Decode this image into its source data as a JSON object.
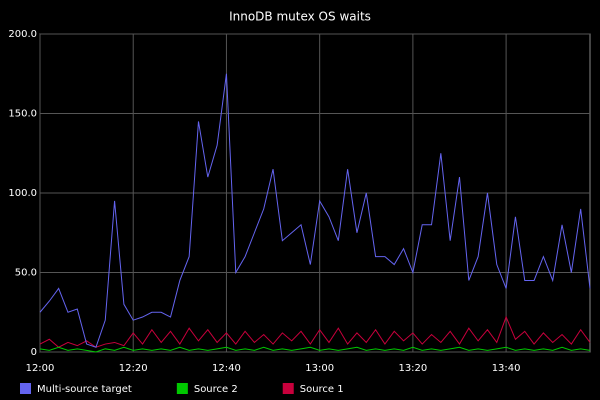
{
  "chart_data": {
    "type": "line",
    "title": "InnoDB mutex OS waits",
    "x": [
      "12:00",
      "12:02",
      "12:04",
      "12:06",
      "12:08",
      "12:10",
      "12:12",
      "12:14",
      "12:16",
      "12:18",
      "12:20",
      "12:22",
      "12:24",
      "12:26",
      "12:28",
      "12:30",
      "12:32",
      "12:34",
      "12:36",
      "12:38",
      "12:40",
      "12:42",
      "12:44",
      "12:46",
      "12:48",
      "12:50",
      "12:52",
      "12:54",
      "12:56",
      "12:58",
      "13:00",
      "13:02",
      "13:04",
      "13:06",
      "13:08",
      "13:10",
      "13:12",
      "13:14",
      "13:16",
      "13:18",
      "13:20",
      "13:22",
      "13:24",
      "13:26",
      "13:28",
      "13:30",
      "13:32",
      "13:34",
      "13:36",
      "13:38",
      "13:40",
      "13:42",
      "13:44",
      "13:46",
      "13:48",
      "13:50",
      "13:52",
      "13:54",
      "13:56",
      "13:58"
    ],
    "series": [
      {
        "name": "Multi-source target",
        "color": "#6464f0",
        "values": [
          25,
          32,
          40,
          25,
          27,
          5,
          3,
          20,
          95,
          30,
          20,
          22,
          25,
          25,
          22,
          45,
          60,
          145,
          110,
          130,
          175,
          50,
          60,
          75,
          90,
          115,
          70,
          75,
          80,
          55,
          95,
          85,
          70,
          115,
          75,
          100,
          60,
          60,
          55,
          65,
          50,
          80,
          80,
          125,
          70,
          110,
          45,
          60,
          100,
          55,
          40,
          85,
          45,
          45,
          60,
          45,
          80,
          50,
          90,
          40
        ]
      },
      {
        "name": "Source 2",
        "color": "#00c800",
        "values": [
          2,
          1,
          3,
          1,
          2,
          1,
          0,
          2,
          1,
          3,
          1,
          2,
          1,
          2,
          1,
          3,
          1,
          2,
          1,
          2,
          3,
          1,
          2,
          1,
          3,
          1,
          2,
          1,
          2,
          3,
          1,
          2,
          1,
          2,
          3,
          1,
          2,
          1,
          2,
          1,
          3,
          1,
          2,
          1,
          2,
          3,
          1,
          2,
          1,
          2,
          3,
          1,
          2,
          1,
          2,
          1,
          3,
          1,
          2,
          1
        ]
      },
      {
        "name": "Source 1",
        "color": "#c8003c",
        "values": [
          5,
          8,
          3,
          6,
          4,
          7,
          3,
          5,
          6,
          4,
          12,
          5,
          14,
          6,
          13,
          5,
          15,
          7,
          14,
          6,
          12,
          5,
          13,
          6,
          11,
          5,
          12,
          7,
          13,
          5,
          14,
          6,
          15,
          5,
          12,
          6,
          14,
          5,
          13,
          7,
          12,
          5,
          11,
          6,
          13,
          5,
          15,
          7,
          14,
          6,
          22,
          8,
          13,
          5,
          12,
          6,
          11,
          5,
          14,
          6
        ]
      }
    ],
    "xticks": [
      "12:00",
      "12:20",
      "12:40",
      "13:00",
      "13:20",
      "13:40"
    ],
    "ylim": [
      0,
      200
    ],
    "yticks": [
      0,
      {
        "value": 50,
        "label": "50.0"
      },
      {
        "value": 100,
        "label": "100.0"
      },
      {
        "value": 150,
        "label": "150.0"
      },
      {
        "value": 200,
        "label": "200.0"
      }
    ],
    "grid": true,
    "legend": "bottom"
  }
}
